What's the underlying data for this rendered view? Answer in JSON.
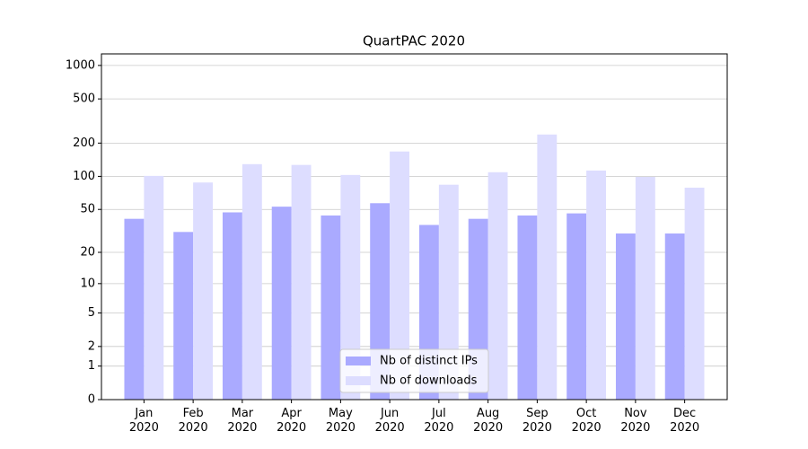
{
  "chart_data": {
    "type": "bar",
    "title": "QuartPAC 2020",
    "categories": [
      "Jan 2020",
      "Feb 2020",
      "Mar 2020",
      "Apr 2020",
      "May 2020",
      "Jun 2020",
      "Jul 2020",
      "Aug 2020",
      "Sep 2020",
      "Oct 2020",
      "Nov 2020",
      "Dec 2020"
    ],
    "series": [
      {
        "name": "Nb of distinct IPs",
        "color": "#aaaaff",
        "values": [
          41,
          31,
          47,
          53,
          44,
          57,
          36,
          41,
          44,
          46,
          30,
          30
        ]
      },
      {
        "name": "Nb of downloads",
        "color": "#ddddff",
        "values": [
          101,
          88,
          129,
          127,
          103,
          168,
          84,
          109,
          239,
          113,
          99,
          79
        ]
      }
    ],
    "yscale": "log1p",
    "ylim": [
      0,
      1270
    ],
    "yticks": [
      0,
      1,
      2,
      5,
      10,
      20,
      50,
      100,
      200,
      500,
      1000
    ],
    "grid": true,
    "legend": "lower center"
  }
}
